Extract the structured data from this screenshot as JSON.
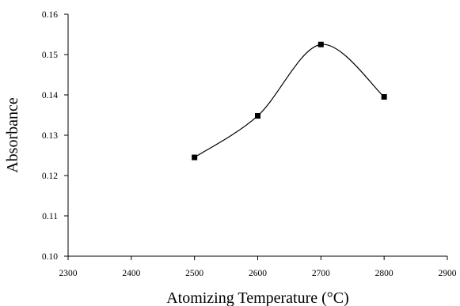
{
  "chart_data": {
    "type": "line",
    "title": "",
    "xlabel": "Atomizing Temperature (°C)",
    "ylabel": "Absorbance",
    "xlim": [
      2300,
      2900
    ],
    "ylim": [
      0.1,
      0.16
    ],
    "x_ticks": [
      2300,
      2400,
      2500,
      2600,
      2700,
      2800,
      2900
    ],
    "y_ticks": [
      0.1,
      0.11,
      0.12,
      0.13,
      0.14,
      0.15,
      0.16
    ],
    "x_tick_labels": [
      "2300",
      "2400",
      "2500",
      "2600",
      "2700",
      "2800",
      "2900"
    ],
    "y_tick_labels": [
      "0.10",
      "0.11",
      "0.12",
      "0.13",
      "0.14",
      "0.15",
      "0.16"
    ],
    "grid": false,
    "legend": "none",
    "marker": "square",
    "line_style": "smooth",
    "line_color": "#000000",
    "series": [
      {
        "x": [
          2500,
          2600,
          2700,
          2800
        ],
        "y": [
          0.1245,
          0.1348,
          0.1525,
          0.1395
        ]
      }
    ]
  }
}
